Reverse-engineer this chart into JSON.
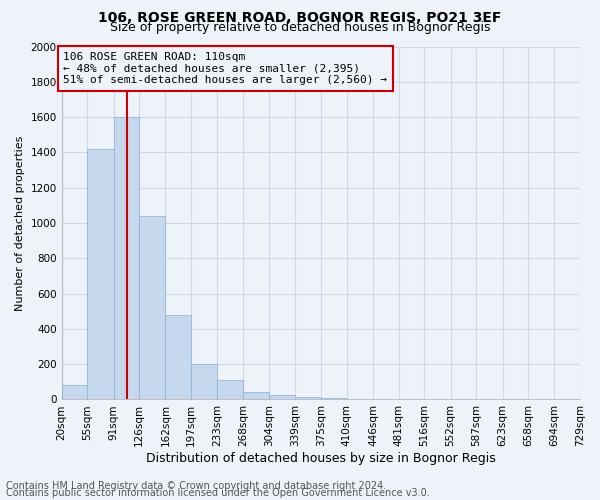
{
  "title1": "106, ROSE GREEN ROAD, BOGNOR REGIS, PO21 3EF",
  "title2": "Size of property relative to detached houses in Bognor Regis",
  "xlabel": "Distribution of detached houses by size in Bognor Regis",
  "ylabel": "Number of detached properties",
  "footer1": "Contains HM Land Registry data © Crown copyright and database right 2024.",
  "footer2": "Contains public sector information licensed under the Open Government Licence v3.0.",
  "annotation_line1": "106 ROSE GREEN ROAD: 110sqm",
  "annotation_line2": "← 48% of detached houses are smaller (2,395)",
  "annotation_line3": "51% of semi-detached houses are larger (2,560) →",
  "property_size": 110,
  "bar_edges": [
    20,
    55,
    91,
    126,
    162,
    197,
    233,
    268,
    304,
    339,
    375,
    410,
    446,
    481,
    516,
    552,
    587,
    623,
    658,
    694,
    729
  ],
  "bar_heights": [
    80,
    1420,
    1600,
    1040,
    480,
    200,
    110,
    40,
    25,
    15,
    10,
    5,
    2,
    1,
    1,
    1,
    0,
    0,
    0,
    0
  ],
  "bar_color": "#c5d8ee",
  "bar_edge_color": "#8ab0d0",
  "line_color": "#cc0000",
  "annotation_box_color": "#cc0000",
  "background_color": "#eef2f9",
  "grid_color": "#d0d8e8",
  "ylim": [
    0,
    2000
  ],
  "yticks": [
    0,
    200,
    400,
    600,
    800,
    1000,
    1200,
    1400,
    1600,
    1800,
    2000
  ],
  "title1_fontsize": 10,
  "title2_fontsize": 9,
  "xlabel_fontsize": 9,
  "ylabel_fontsize": 8,
  "tick_fontsize": 7.5,
  "annotation_fontsize": 8,
  "footer_fontsize": 7
}
